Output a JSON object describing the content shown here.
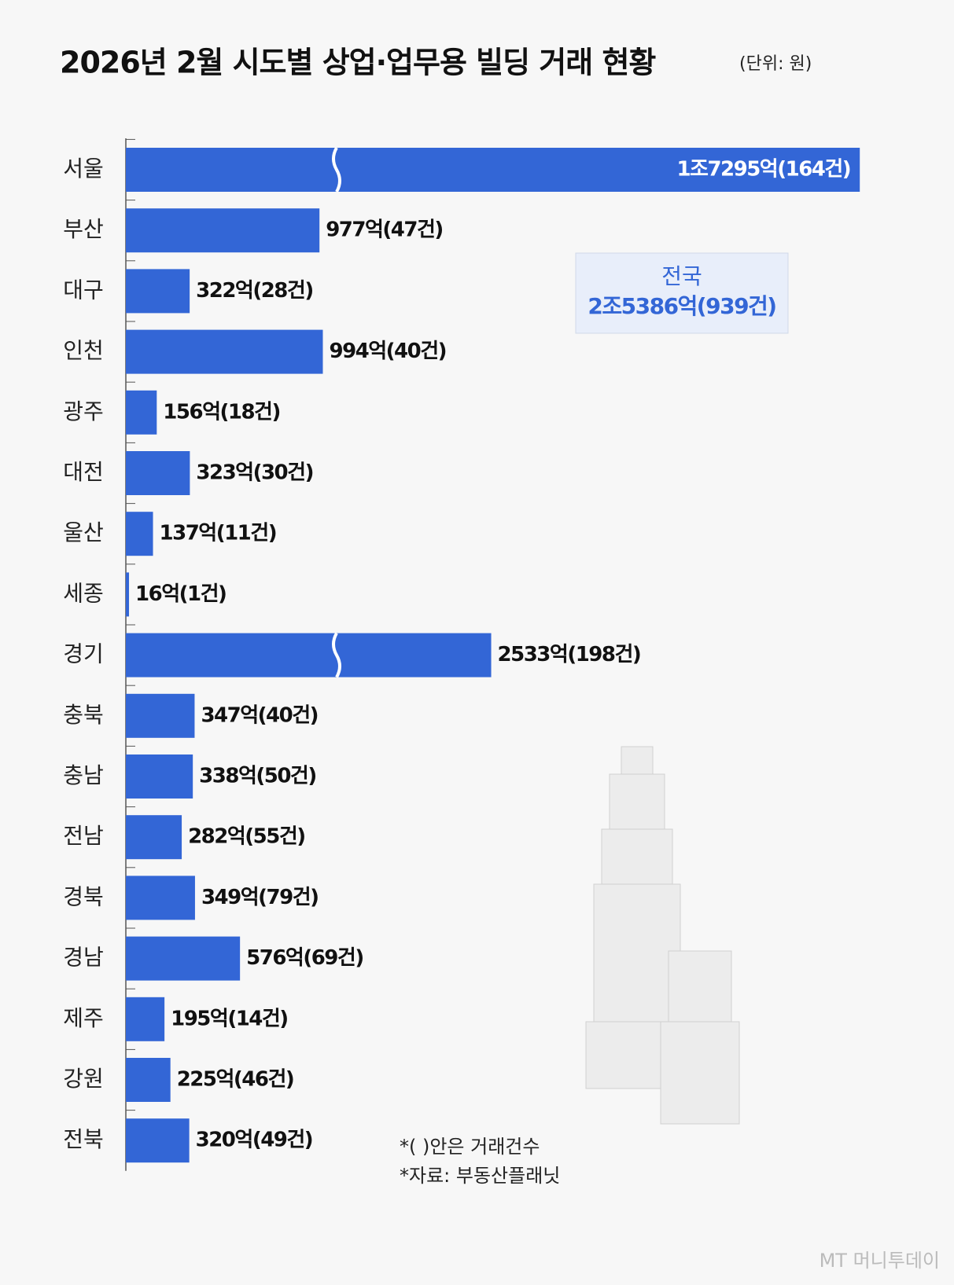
{
  "chart_data": {
    "type": "bar",
    "orientation": "horizontal",
    "title": "2026년 2월 시도별 상업·업무용 빌딩 거래 현황",
    "unit": "(단위: 원)",
    "categories": [
      "서울",
      "부산",
      "대구",
      "인천",
      "광주",
      "대전",
      "울산",
      "세종",
      "경기",
      "충북",
      "충남",
      "전남",
      "경북",
      "경남",
      "제주",
      "강원",
      "전북"
    ],
    "values": [
      17295,
      977,
      322,
      994,
      156,
      323,
      137,
      16,
      2533,
      347,
      338,
      282,
      349,
      576,
      195,
      225,
      320
    ],
    "value_labels": [
      "1조7295억(164건)",
      "977억(47건)",
      "322억(28건)",
      "994억(40건)",
      "156억(18건)",
      "323억(30건)",
      "137억(11건)",
      "16억(1건)",
      "2533억(198건)",
      "347억(40건)",
      "338억(50건)",
      "282억(55건)",
      "349억(79건)",
      "576억(69건)",
      "195억(14건)",
      "225억(46건)",
      "320억(49건)"
    ],
    "color": "#3366d6",
    "axis_break": true,
    "total_label": "전국",
    "total_value_label": "2조5386억(939건)",
    "footnotes": [
      "*( )안은 거래건수",
      "*자료: 부동산플래닛"
    ],
    "watermark": "MT 머니투데이"
  }
}
